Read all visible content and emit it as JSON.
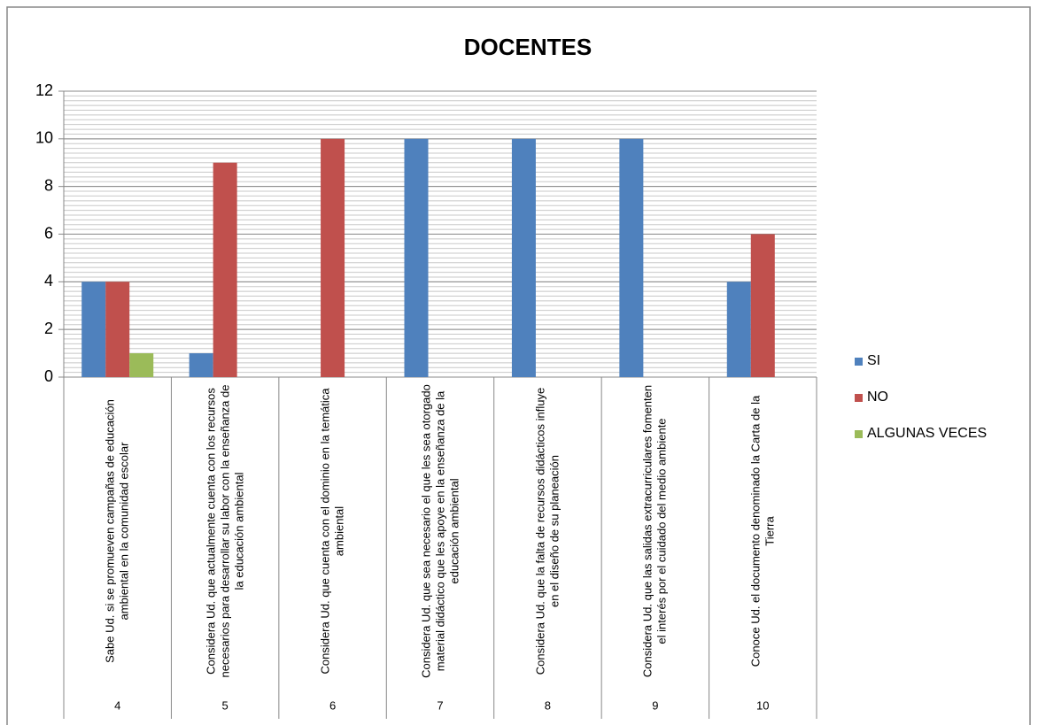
{
  "chart_data": {
    "type": "bar",
    "title": "DOCENTES",
    "categories": [
      "Sabe Ud. si se promueven campañas de educación ambiental en la comunidad escolar",
      "Considera Ud. que actualmente cuenta con los recursos necesarios para desarrollar su labor con la enseñanza de la educación ambiental",
      "Considera Ud. que cuenta con el dominio en la temática ambiental",
      "Considera Ud. que  sea necesario el que les sea otorgado material didáctico que  les apoye en la enseñanza de la educación ambiental",
      "Considera Ud. que la falta de recursos didácticos influye en el diseño de su planeación",
      "Considera Ud. que las salidas extracurriculares fomenten el interés  por el cuidado del medio ambiente",
      "Conoce Ud. el documento denominado la Carta de la Tierra"
    ],
    "category_codes": [
      "4",
      "5",
      "6",
      "7",
      "8",
      "9",
      "10"
    ],
    "series": [
      {
        "name": "SI",
        "color": "#4f81bd",
        "values": [
          4,
          1,
          0,
          10,
          10,
          10,
          4
        ]
      },
      {
        "name": "NO",
        "color": "#c0504d",
        "values": [
          4,
          9,
          10,
          0,
          0,
          0,
          6
        ]
      },
      {
        "name": "ALGUNAS VECES",
        "color": "#9bbb59",
        "values": [
          1,
          0,
          0,
          0,
          0,
          0,
          0
        ]
      }
    ],
    "ylim": [
      0,
      12
    ],
    "yticks": [
      0,
      2,
      4,
      6,
      8,
      10,
      12
    ],
    "grid": true,
    "minor_grid": 0.2,
    "legend": "right"
  }
}
